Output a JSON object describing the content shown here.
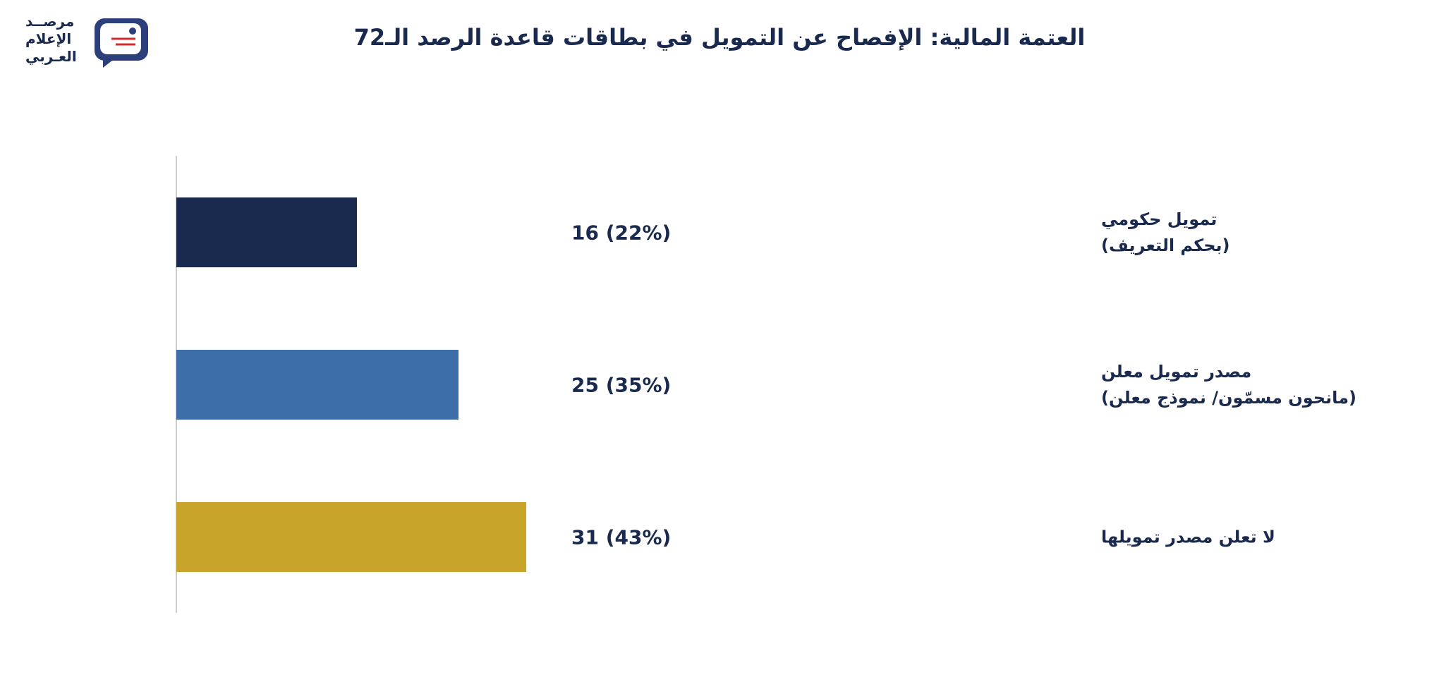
{
  "logo": "مرصــد\nالإعلام\nالعـربي",
  "chart_data": {
    "type": "barh",
    "title": "العتمة المالية: الإفصاح عن التمويل في بطاقات قاعدة الرصد الـ72",
    "categories": [
      "تمويل حكومي\n(بحكم التعريف)",
      "مصدر تمويل معلن\n(مانحون مسمّون/ نموذج معلن)",
      "لا تعلن مصدر تمويلها"
    ],
    "values": [
      16,
      25,
      31
    ],
    "value_labels": [
      "16 (22%)",
      "25 (35%)",
      "31 (43%)"
    ],
    "colors": [
      "#1a2a4e",
      "#3e6ea8",
      "#c9a42a"
    ]
  }
}
